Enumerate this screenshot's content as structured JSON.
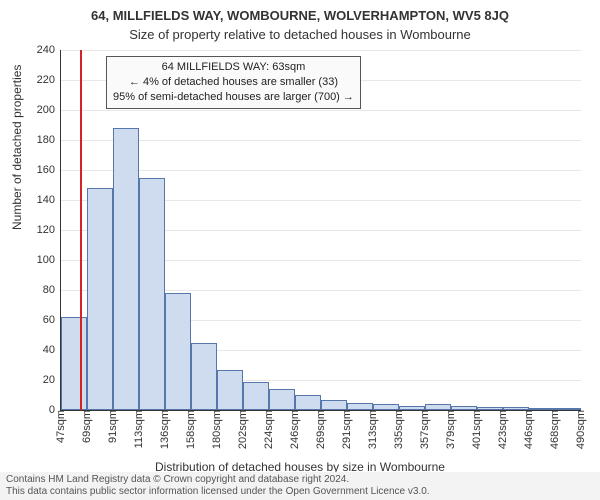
{
  "header": {
    "title_main": "64, MILLFIELDS WAY, WOMBOURNE, WOLVERHAMPTON, WV5 8JQ",
    "title_sub": "Size of property relative to detached houses in Wombourne"
  },
  "axes": {
    "y_label": "Number of detached properties",
    "x_label": "Distribution of detached houses by size in Wombourne"
  },
  "callout": {
    "line1": "64 MILLFIELDS WAY: 63sqm",
    "line2": "← 4% of detached houses are smaller (33)",
    "line3": "95% of semi-detached houses are larger (700) →"
  },
  "attribution": {
    "line1": "Contains HM Land Registry data © Crown copyright and database right 2024.",
    "line2": "This data contains public sector information licensed under the Open Government Licence v3.0."
  },
  "chart": {
    "type": "histogram",
    "background_color": "#ffffff",
    "bar_fill": "#cfdcf0",
    "bar_stroke": "#5577aa",
    "grid_color": "#e8e8e8",
    "axis_color": "#333333",
    "ref_line_color": "#d62222",
    "label_fontsize": 11,
    "title_fontsize": 13,
    "y_min": 0,
    "y_max": 240,
    "y_ticks": [
      0,
      20,
      40,
      60,
      80,
      100,
      120,
      140,
      160,
      180,
      200,
      220,
      240
    ],
    "x_ticks": [
      "47sqm",
      "69sqm",
      "91sqm",
      "113sqm",
      "136sqm",
      "158sqm",
      "180sqm",
      "202sqm",
      "224sqm",
      "246sqm",
      "269sqm",
      "291sqm",
      "313sqm",
      "335sqm",
      "357sqm",
      "379sqm",
      "401sqm",
      "423sqm",
      "446sqm",
      "468sqm",
      "490sqm"
    ],
    "x_tick_positions": [
      0,
      1,
      2,
      3,
      4,
      5,
      6,
      7,
      8,
      9,
      10,
      11,
      12,
      13,
      14,
      15,
      16,
      17,
      18,
      19,
      20
    ],
    "bar_edges": [
      0,
      1,
      2,
      3,
      4,
      5,
      6,
      7,
      8,
      9,
      10,
      11,
      12,
      13,
      14,
      15,
      16,
      17,
      18,
      19,
      20
    ],
    "bars": [
      62,
      148,
      188,
      155,
      78,
      45,
      27,
      19,
      14,
      10,
      7,
      5,
      4,
      3,
      4,
      3,
      2,
      2,
      1,
      1
    ],
    "ref_line_x": 0.72,
    "bar_count": 20
  }
}
